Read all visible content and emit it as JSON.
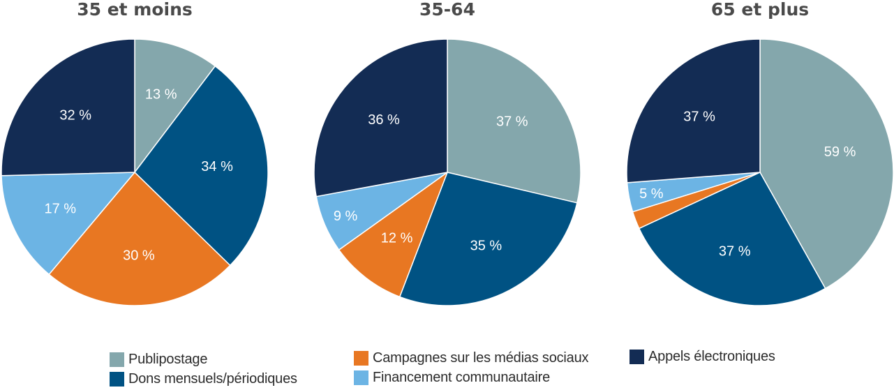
{
  "chart_data": [
    {
      "type": "pie",
      "title": "35 et moins",
      "series": [
        {
          "name": "Publipostage",
          "value": 13,
          "label": "13 %"
        },
        {
          "name": "Dons mensuels/périodiques",
          "value": 34,
          "label": "34 %"
        },
        {
          "name": "Campagnes sur les médias sociaux",
          "value": 30,
          "label": "30 %"
        },
        {
          "name": "Financement communautaire",
          "value": 17,
          "label": "17 %"
        },
        {
          "name": "Appels électroniques",
          "value": 32,
          "label": "32 %"
        }
      ]
    },
    {
      "type": "pie",
      "title": "35-64",
      "series": [
        {
          "name": "Publipostage",
          "value": 37,
          "label": "37 %"
        },
        {
          "name": "Dons mensuels/périodiques",
          "value": 35,
          "label": "35 %"
        },
        {
          "name": "Campagnes sur les médias sociaux",
          "value": 12,
          "label": "12 %"
        },
        {
          "name": "Financement communautaire",
          "value": 9,
          "label": "9 %"
        },
        {
          "name": "Appels électroniques",
          "value": 36,
          "label": "36 %"
        }
      ]
    },
    {
      "type": "pie",
      "title": "65 et plus",
      "series": [
        {
          "name": "Publipostage",
          "value": 59,
          "label": "59 %"
        },
        {
          "name": "Dons mensuels/périodiques",
          "value": 37,
          "label": "37 %"
        },
        {
          "name": "Campagnes sur les médias sociaux",
          "value": 3,
          "label": ""
        },
        {
          "name": "Financement communautaire",
          "value": 5,
          "label": "5 %"
        },
        {
          "name": "Appels électroniques",
          "value": 37,
          "label": "37 %"
        }
      ]
    }
  ],
  "legend": [
    {
      "label": "Publipostage",
      "color": "#84a7ac"
    },
    {
      "label": "Dons mensuels/périodiques",
      "color": "#005283"
    },
    {
      "label": "Campagnes sur les médias sociaux",
      "color": "#e87722"
    },
    {
      "label": "Financement communautaire",
      "color": "#6cb4e4"
    },
    {
      "label": "Appels électroniques",
      "color": "#132c54"
    }
  ]
}
